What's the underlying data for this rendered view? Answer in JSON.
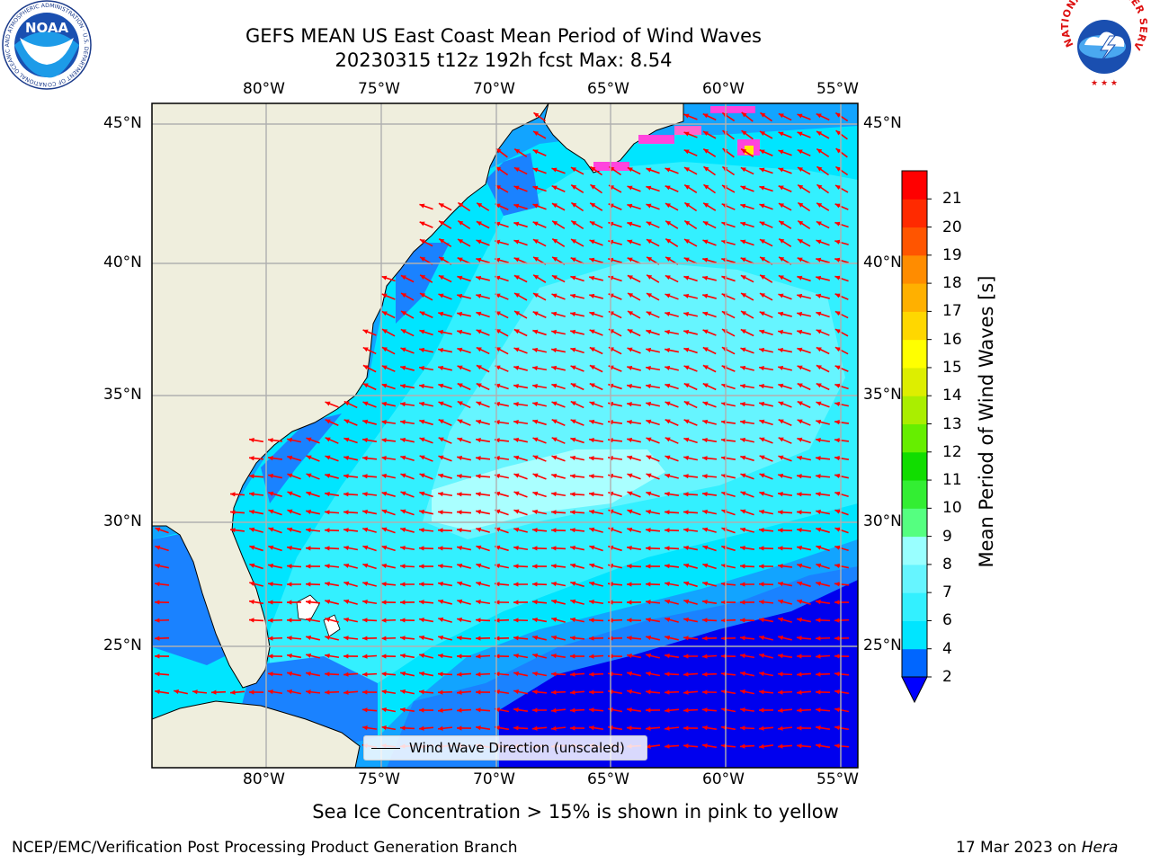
{
  "title": {
    "line1": "GEFS MEAN US East Coast Mean Period of Wind Waves",
    "line2": "20230315 t12z 192h fcst   Max: 8.54"
  },
  "logos": {
    "noaa_text": "NOAA",
    "noaa_ring": "NATIONAL OCEANIC AND ATMOSPHERIC ADMINISTRATION · U.S. DEPARTMENT OF COMMERCE",
    "nws_ring": "NATIONAL WEATHER SERVICE"
  },
  "axes": {
    "lon_labels": [
      "80°W",
      "75°W",
      "70°W",
      "65°W",
      "60°W",
      "55°W"
    ],
    "lat_labels": [
      "45°N",
      "40°N",
      "35°N",
      "30°N",
      "25°N"
    ]
  },
  "legend": {
    "label": "Wind Wave Direction (unscaled)"
  },
  "colorbar": {
    "label": "Mean Period of Wind Waves [s]",
    "ticks": [
      "2",
      "4",
      "6",
      "7",
      "8",
      "9",
      "10",
      "11",
      "12",
      "13",
      "14",
      "15",
      "16",
      "17",
      "18",
      "19",
      "20",
      "21"
    ],
    "colors": [
      "#0066ff",
      "#00e5ff",
      "#33f0ff",
      "#66f5ff",
      "#99ffff",
      "#55ff80",
      "#33ee33",
      "#11dd00",
      "#66ee00",
      "#aaee00",
      "#ddee00",
      "#ffff00",
      "#ffd700",
      "#ffb000",
      "#ff8c00",
      "#ff5500",
      "#ff2a00",
      "#ff0000"
    ],
    "under_color": "#0000ff"
  },
  "notes": {
    "ice_note": "Sea Ice Concentration > 15% is shown in pink to yellow",
    "branch": "NCEP/EMC/Verification Post Processing Product Generation Branch",
    "date": "17 Mar 2023 on ",
    "machine": "Hera"
  },
  "colors": {
    "land": "#efeedd",
    "grid": "#b0b0b0",
    "arrow": "#ff0000",
    "ice": "#ff44dd"
  }
}
